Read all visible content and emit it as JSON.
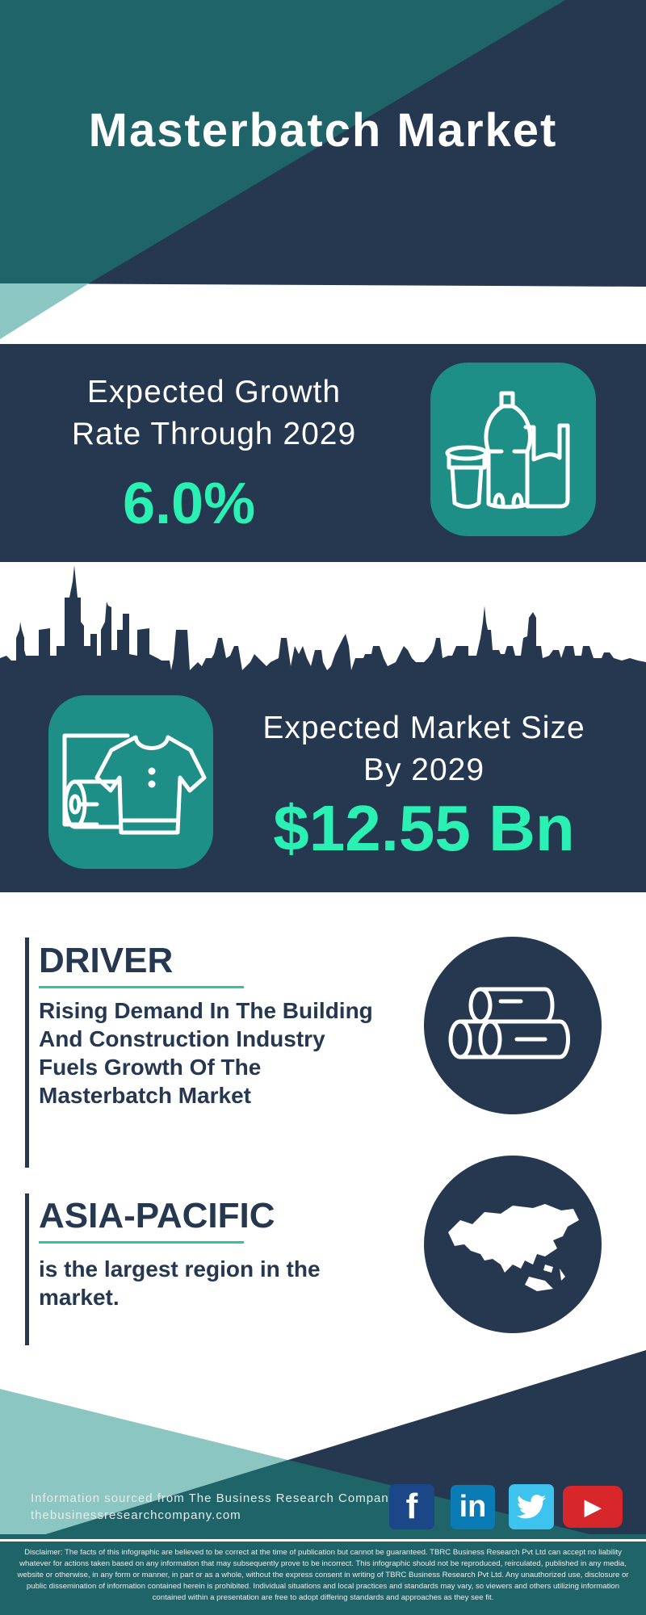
{
  "header": {
    "title": "Masterbatch Market"
  },
  "growth": {
    "label_line1": "Expected Growth",
    "label_line2": "Rate Through 2029",
    "value": "6.0%",
    "icon": "plastic-products-icon"
  },
  "market_size": {
    "label_line1": "Expected Market Size",
    "label_line2": "By 2029",
    "value": "$12.55 Bn",
    "icon": "textile-shirt-roll-icon"
  },
  "driver": {
    "heading": "DRIVER",
    "text_lines": [
      "Rising Demand In The Building",
      "And Construction Industry",
      "Fuels Growth Of The",
      "Masterbatch Market"
    ],
    "icon": "logs-icon"
  },
  "region": {
    "heading": "ASIA-PACIFIC",
    "text_lines": [
      "is the largest region in the",
      "market."
    ],
    "icon": "asia-map-icon"
  },
  "footer": {
    "source": "Information sourced from The Business Research Company",
    "url": "thebusinessresearchcompany.com",
    "social": [
      {
        "name": "facebook",
        "glyph": "f",
        "color": "#1b4788"
      },
      {
        "name": "linkedin",
        "glyph": "in",
        "color": "#0a7bb5"
      },
      {
        "name": "twitter",
        "glyph": "twitter-bird",
        "color": "#3ec3ee"
      },
      {
        "name": "youtube",
        "glyph": "▶",
        "color": "#d8272a"
      }
    ],
    "disclaimer": "Disclaimer: The facts of this infographic are believed to be correct at the time of publication but cannot be guaranteed. TBRC Business Research Pvt Ltd can accept no liability whatever for actions taken based on any information that may subsequently prove to be incorrect. This infographic should not be reproduced, reirculated, published in any media, website or otherwise, in any form or manner, in part or as a whole, without the express consent in writing of TBRC Business Research Pvt Ltd. Any unauthorized use, disclosure or public dissemination of information contained herein is prohibited. Individual situations and local practices and standards may vary, so viewers and others utilizing information contained within a presentation are free to adopt differing standards and approaches as they see fit."
  },
  "colors": {
    "navy": "#253850",
    "teal": "#1e6468",
    "light_teal": "#8cc6c2",
    "icon_teal": "#1d8f86",
    "accent_green": "#2af0b4"
  }
}
